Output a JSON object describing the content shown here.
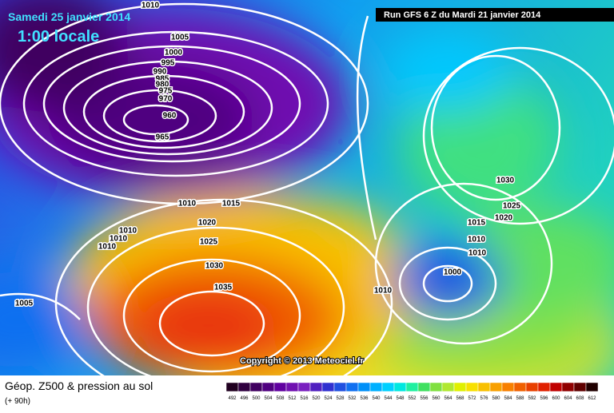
{
  "header": {
    "date": "Samedi 25 janvier 2014",
    "time": "1:00 locale",
    "run": "Run GFS 6 Z du Mardi 21 janvier 2014"
  },
  "copyright": "Copyright © 2013 Meteociel.fr",
  "footer": {
    "title": "Géop. Z500 & pression au sol",
    "lead": "(+ 90h)"
  },
  "isobar_labels": [
    1010,
    1005,
    1000,
    995,
    990,
    985,
    980,
    975,
    970,
    960,
    965,
    1010,
    1015,
    1020,
    1010,
    1010,
    1010,
    1025,
    1030,
    1035,
    1005,
    1010,
    1000,
    1010,
    1010,
    1015,
    1020,
    1025,
    1030
  ],
  "legend": {
    "values": [
      492,
      496,
      500,
      504,
      508,
      512,
      516,
      520,
      524,
      528,
      532,
      536,
      540,
      544,
      548,
      552,
      556,
      560,
      564,
      568,
      572,
      576,
      580,
      584,
      588,
      592,
      596,
      600,
      604,
      608,
      612
    ],
    "colors": [
      "#200020",
      "#300040",
      "#400060",
      "#500080",
      "#6000a0",
      "#7010b0",
      "#7a20c0",
      "#5020c0",
      "#3030d0",
      "#2050e0",
      "#1070f0",
      "#0090f8",
      "#00b0ff",
      "#00d0ff",
      "#00e8e0",
      "#20f0a0",
      "#40e060",
      "#80e040",
      "#b0e830",
      "#e0f000",
      "#f8e000",
      "#f8c000",
      "#f8a000",
      "#f88000",
      "#f06000",
      "#e84000",
      "#e02000",
      "#c00000",
      "#900000",
      "#600000",
      "#200000"
    ]
  }
}
